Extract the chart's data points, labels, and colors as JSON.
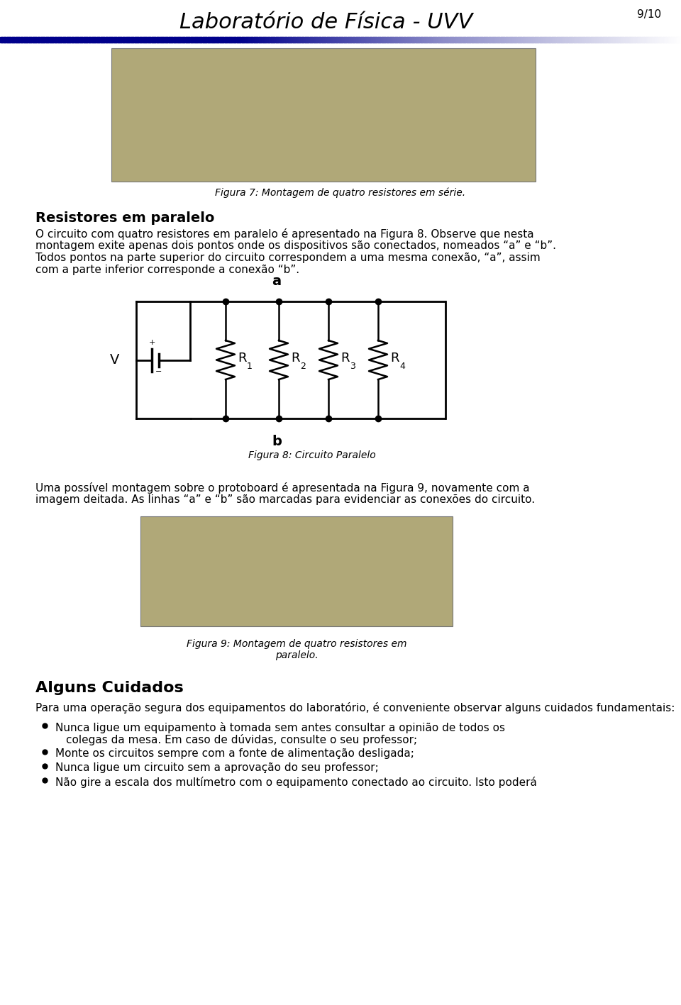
{
  "title": "Laboratório de Física - UVV",
  "page_num": "9/10",
  "section1_title": "Resistores em paralelo",
  "para1_lines": [
    "O circuito com quatro resistores em paralelo é apresentado na Figura 8. Observe que nesta",
    "montagem exite apenas dois pontos onde os dispositivos são conectados, nomeados “a” e “b”.",
    "Todos pontos na parte superior do circuito correspondem a uma mesma conexão, “a”, assim",
    "com a parte inferior corresponde a conexão “b”."
  ],
  "fig7_caption": "Figura 7: Montagem de quatro resistores em série.",
  "fig8_caption": "Figura 8: Circuito Paralelo",
  "fig8_label_a": "a",
  "fig8_label_b": "b",
  "fig8_label_V": "V",
  "fig8_subscripts": [
    "1",
    "2",
    "3",
    "4"
  ],
  "fig9_caption_line1": "Figura 9: Montagem de quatro resistores em",
  "fig9_caption_line2": "paralelo.",
  "section2_title": "Alguns Cuidados",
  "para2": "Para uma operação segura dos equipamentos do laboratório, é conveniente observar alguns cuidados fundamentais:",
  "bullets": [
    [
      "Nunca ligue um equipamento à tomada sem antes consultar a opinião de todos os",
      "colegas da mesa. Em caso de dúvidas, consulte o seu professor;"
    ],
    [
      "Monte os circuitos sempre com a fonte de alimentação desligada;"
    ],
    [
      "Nunca ligue um circuito sem a aprovação do seu professor;"
    ],
    [
      "Não gire a escala dos multímetro com o equipamento conectado ao circuito. Isto poderá"
    ]
  ],
  "para3_lines": [
    "Uma possível montagem sobre o protoboard é apresentada na Figura 9, novamente com a",
    "imagem deitada. As linhas “a” e “b” são marcadas para evidenciar as conexões do circuito."
  ],
  "bg_color": "#FFFFFF",
  "text_color": "#000000",
  "title_font_size": 22,
  "body_font_size": 11,
  "section_font_size": 14
}
